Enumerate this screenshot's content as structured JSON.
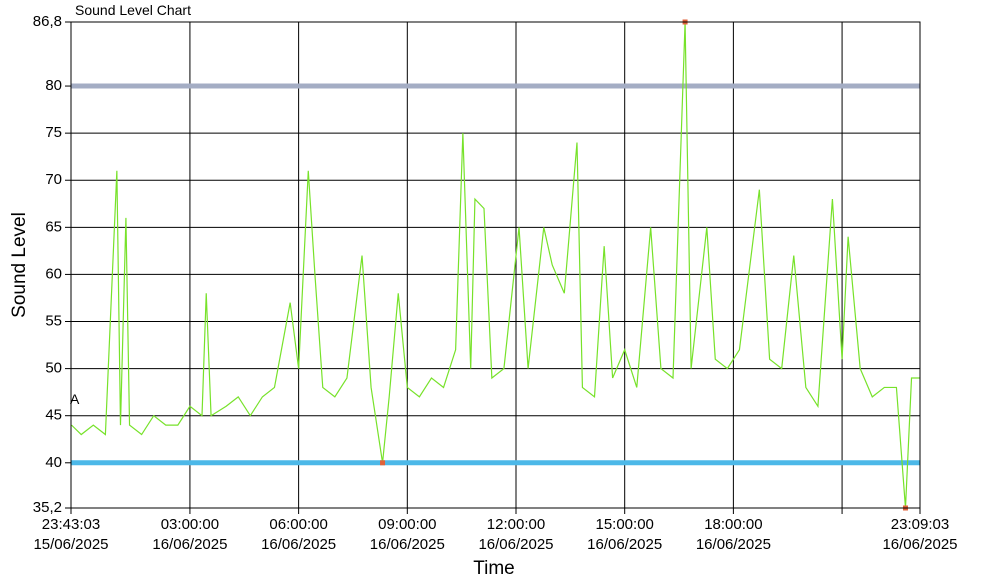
{
  "chart_data": {
    "type": "line",
    "title": "Sound Level Chart",
    "x_label": "Time",
    "y_label": "Sound Level",
    "annotations": [
      "A"
    ],
    "xlim": [
      "2025-06-15T23:43:03",
      "2025-06-16T23:09:03"
    ],
    "xticks": [
      {
        "value": "2025-06-15T23:43:03",
        "label": [
          "23:43:03",
          "15/06/2025"
        ]
      },
      {
        "value": "2025-06-16T03:00:00",
        "label": [
          "03:00:00",
          "16/06/2025"
        ]
      },
      {
        "value": "2025-06-16T06:00:00",
        "label": [
          "06:00:00",
          "16/06/2025"
        ]
      },
      {
        "value": "2025-06-16T09:00:00",
        "label": [
          "09:00:00",
          "16/06/2025"
        ]
      },
      {
        "value": "2025-06-16T12:00:00",
        "label": [
          "12:00:00",
          "16/06/2025"
        ]
      },
      {
        "value": "2025-06-16T15:00:00",
        "label": [
          "15:00:00",
          "16/06/2025"
        ]
      },
      {
        "value": "2025-06-16T18:00:00",
        "label": [
          "18:00:00",
          "16/06/2025"
        ]
      },
      {
        "value": "2025-06-16T21:00:00",
        "label": null
      },
      {
        "value": "2025-06-16T23:09:03",
        "label": [
          "23:09:03",
          "16/06/2025"
        ]
      }
    ],
    "ylim": [
      35.2,
      86.8
    ],
    "yticks": [
      {
        "value": 35.2,
        "label": "35,2"
      },
      40,
      45,
      50,
      55,
      60,
      65,
      70,
      75,
      80,
      {
        "value": 86.8,
        "label": "86,8"
      }
    ],
    "grid": true,
    "reference_lines": [
      {
        "value": 80,
        "color": "#a4adc4"
      },
      {
        "value": 40,
        "color": "#4cb8e8"
      }
    ],
    "marker_color": "#e0623a",
    "x": [
      "2025-06-15T23:44:00",
      "2025-06-16T00:00:00",
      "2025-06-16T00:20:00",
      "2025-06-16T00:40:00",
      "2025-06-16T00:59:00",
      "2025-06-16T01:05:00",
      "2025-06-16T01:14:00",
      "2025-06-16T01:20:00",
      "2025-06-16T01:40:00",
      "2025-06-16T02:00:00",
      "2025-06-16T02:20:00",
      "2025-06-16T02:40:00",
      "2025-06-16T03:00:00",
      "2025-06-16T03:20:00",
      "2025-06-16T03:27:00",
      "2025-06-16T03:35:00",
      "2025-06-16T04:00:00",
      "2025-06-16T04:20:00",
      "2025-06-16T04:40:00",
      "2025-06-16T05:00:00",
      "2025-06-16T05:20:00",
      "2025-06-16T05:46:00",
      "2025-06-16T06:00:00",
      "2025-06-16T06:16:00",
      "2025-06-16T06:27:00",
      "2025-06-16T06:40:00",
      "2025-06-16T07:00:00",
      "2025-06-16T07:20:00",
      "2025-06-16T07:45:00",
      "2025-06-16T08:00:00",
      "2025-06-16T08:19:00",
      "2025-06-16T08:30:00",
      "2025-06-16T08:45:00",
      "2025-06-16T09:00:00",
      "2025-06-16T09:20:00",
      "2025-06-16T09:40:00",
      "2025-06-16T10:00:00",
      "2025-06-16T10:20:00",
      "2025-06-16T10:32:00",
      "2025-06-16T10:45:00",
      "2025-06-16T10:52:00",
      "2025-06-16T11:07:00",
      "2025-06-16T11:20:00",
      "2025-06-16T11:40:00",
      "2025-06-16T12:05:00",
      "2025-06-16T12:20:00",
      "2025-06-16T12:46:00",
      "2025-06-16T13:00:00",
      "2025-06-16T13:20:00",
      "2025-06-16T13:41:00",
      "2025-06-16T13:50:00",
      "2025-06-16T14:10:00",
      "2025-06-16T14:26:00",
      "2025-06-16T14:40:00",
      "2025-06-16T15:00:00",
      "2025-06-16T15:20:00",
      "2025-06-16T15:43:00",
      "2025-06-16T16:00:00",
      "2025-06-16T16:20:00",
      "2025-06-16T16:40:00",
      "2025-06-16T16:50:00",
      "2025-06-16T17:16:00",
      "2025-06-16T17:30:00",
      "2025-06-16T17:50:00",
      "2025-06-16T18:10:00",
      "2025-06-16T18:43:00",
      "2025-06-16T19:00:00",
      "2025-06-16T19:20:00",
      "2025-06-16T19:40:00",
      "2025-06-16T20:00:00",
      "2025-06-16T20:20:00",
      "2025-06-16T20:44:00",
      "2025-06-16T21:00:00",
      "2025-06-16T21:10:00",
      "2025-06-16T21:30:00",
      "2025-06-16T21:50:00",
      "2025-06-16T22:10:00",
      "2025-06-16T22:30:00",
      "2025-06-16T22:45:00",
      "2025-06-16T22:55:00",
      "2025-06-16T23:09:00"
    ],
    "series": [
      {
        "color": "#77e22a",
        "values": [
          44,
          43,
          44,
          43,
          71,
          44,
          66,
          44,
          43,
          45,
          44,
          44,
          46,
          45,
          58,
          45,
          46,
          47,
          45,
          47,
          48,
          57,
          50,
          71,
          60,
          48,
          47,
          49,
          62,
          48,
          40,
          47,
          58,
          48,
          47,
          49,
          48,
          52,
          75,
          50,
          68,
          67,
          49,
          50,
          65,
          50,
          65,
          61,
          58,
          74,
          48,
          47,
          63,
          49,
          52,
          48,
          65,
          50,
          49,
          86.8,
          50,
          65,
          51,
          50,
          52,
          69,
          51,
          50,
          62,
          48,
          46,
          68,
          51,
          64,
          50,
          47,
          48,
          48,
          35.2,
          49,
          49
        ]
      }
    ]
  }
}
